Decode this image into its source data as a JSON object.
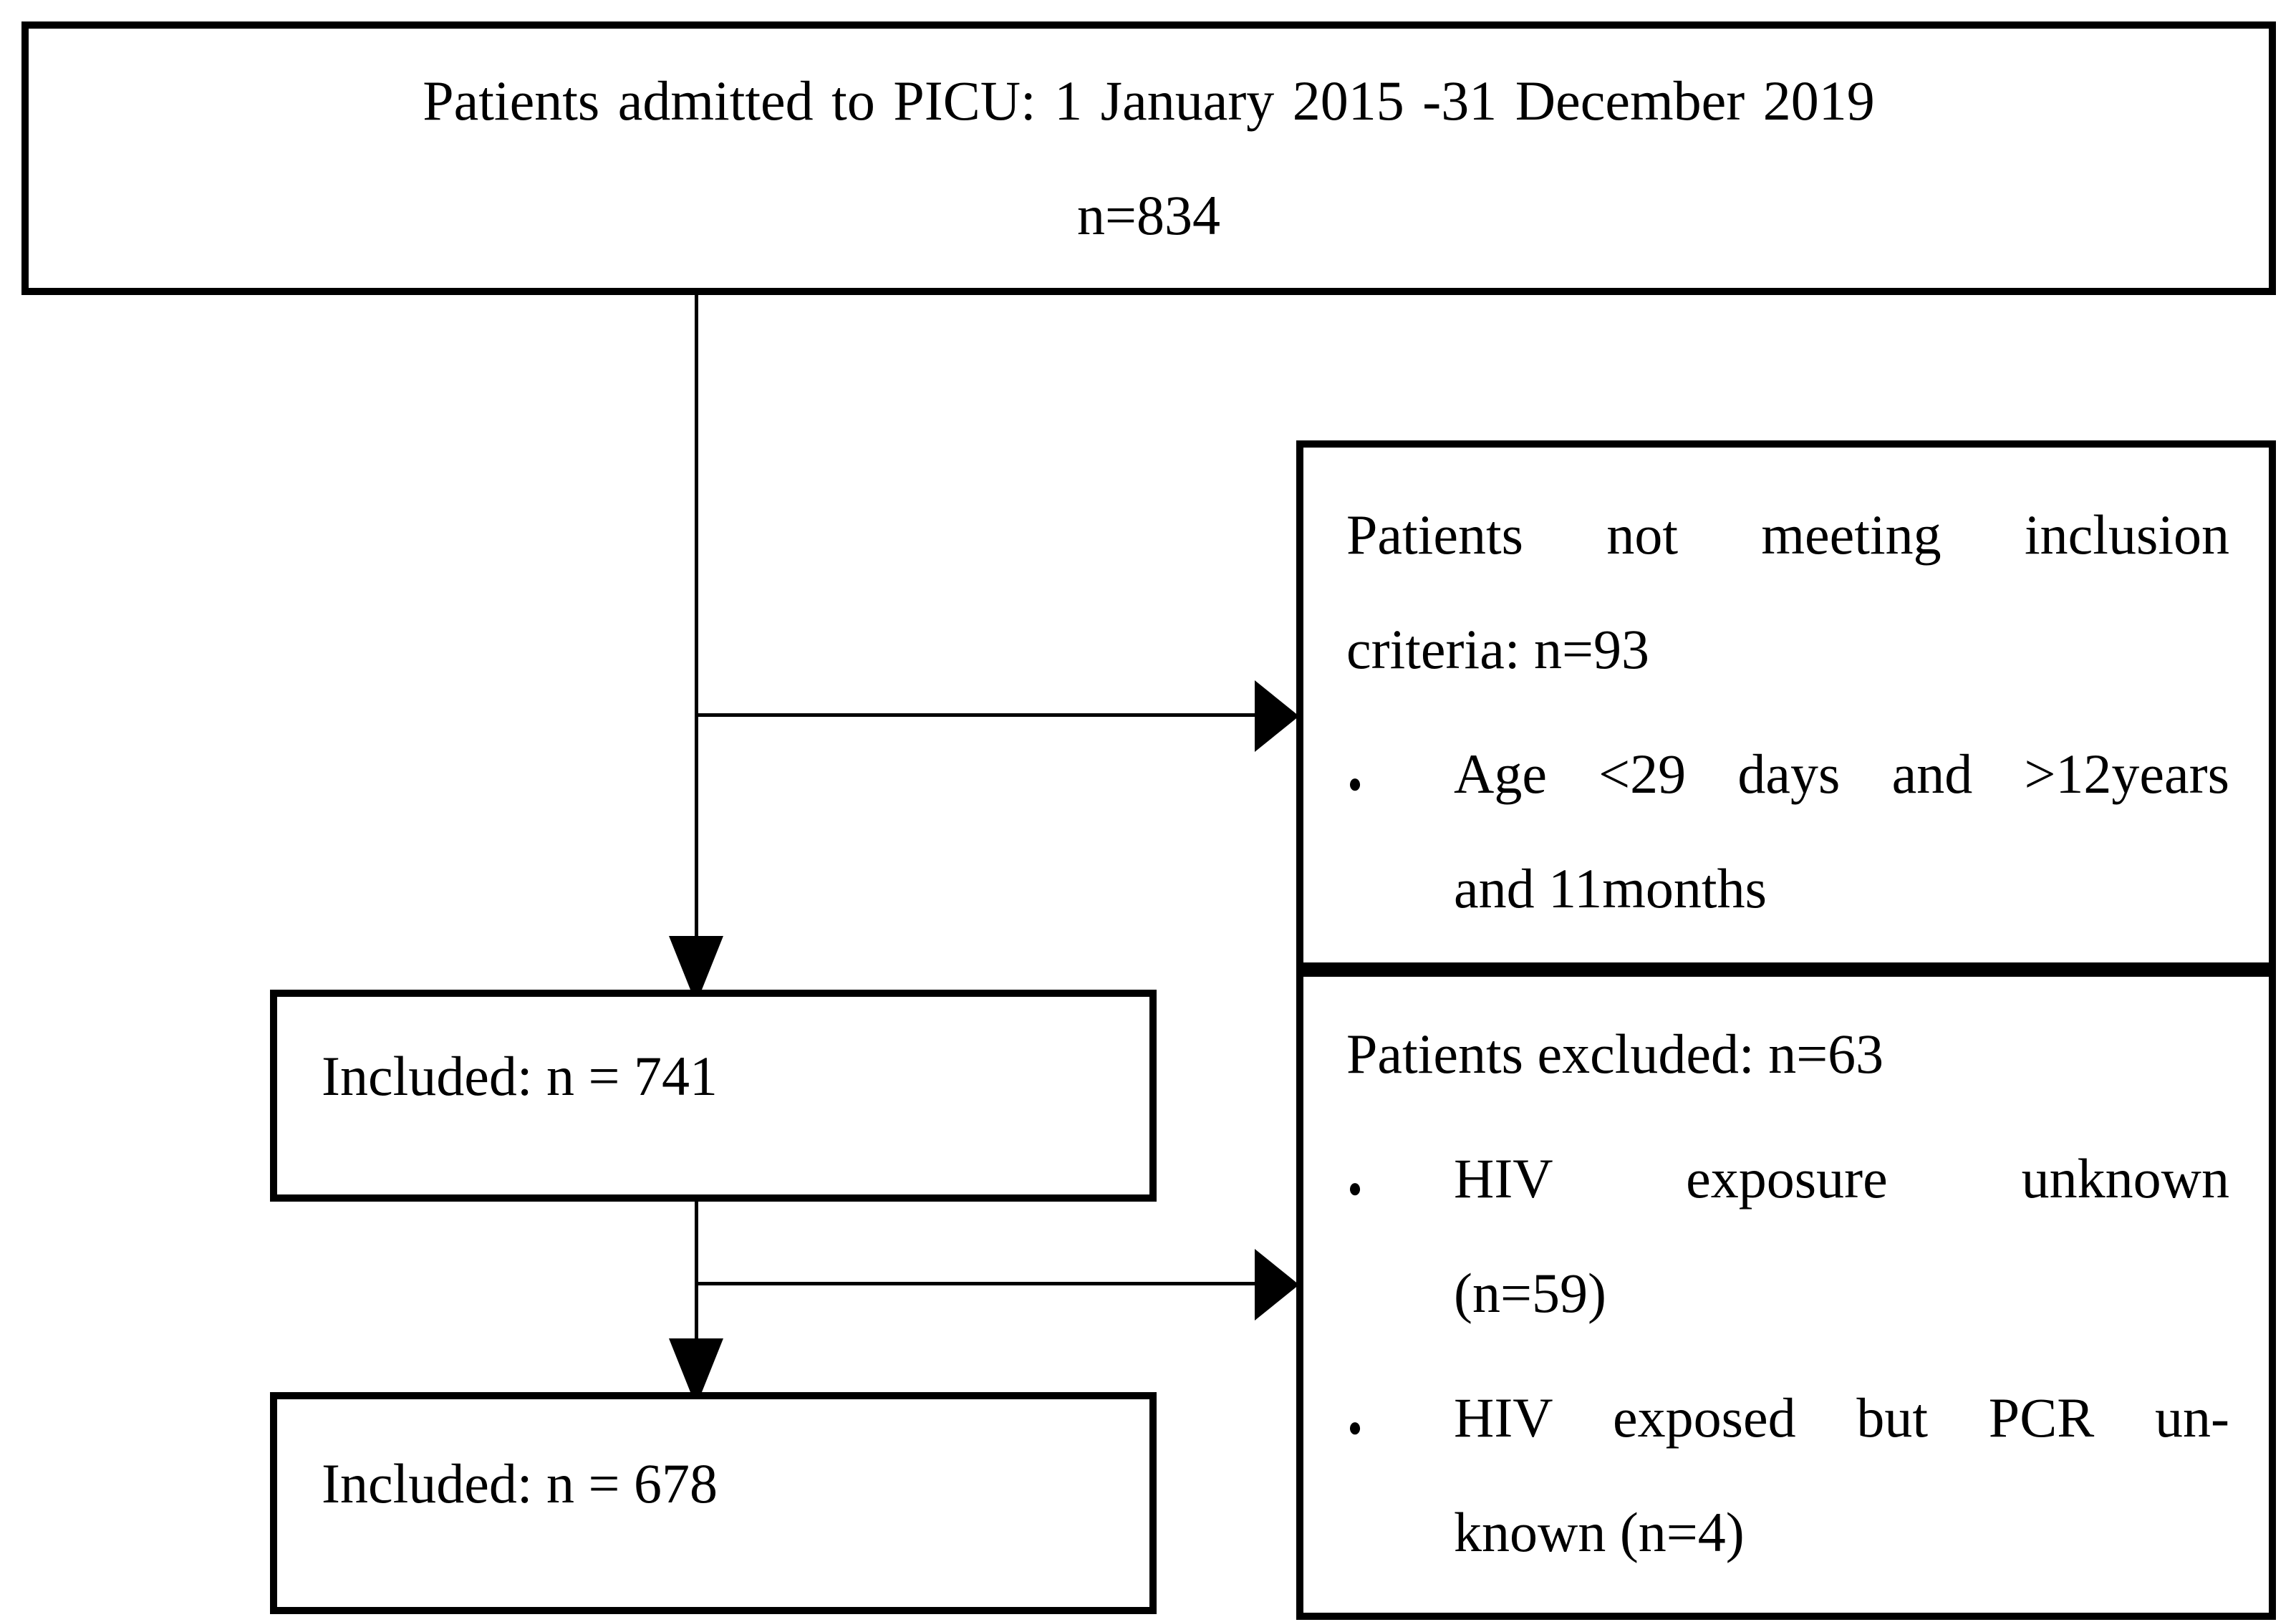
{
  "diagram": {
    "background_color": "#ffffff",
    "line_color": "#000000",
    "bullet_glyph": "●",
    "top_box": {
      "line1": "Patients admitted to PICU: 1 January 2015 -31 December 2019",
      "line2": "n=834"
    },
    "not_meeting_box": {
      "heading_line1": "Patients not meeting inclusion",
      "heading_line2": "criteria: n=93",
      "item_line1": "Age <29 days and >12years",
      "item_line2": "and 11months"
    },
    "included_box_1": {
      "label": "Included: n = 741"
    },
    "excluded_box": {
      "heading": "Patients excluded: n=63",
      "item1_line1": "HIV exposure unknown",
      "item1_line2": "(n=59)",
      "item2_line1": "HIV exposed but PCR un-",
      "item2_line2": "known (n=4)"
    },
    "included_box_2": {
      "label": "Included: n = 678"
    }
  }
}
